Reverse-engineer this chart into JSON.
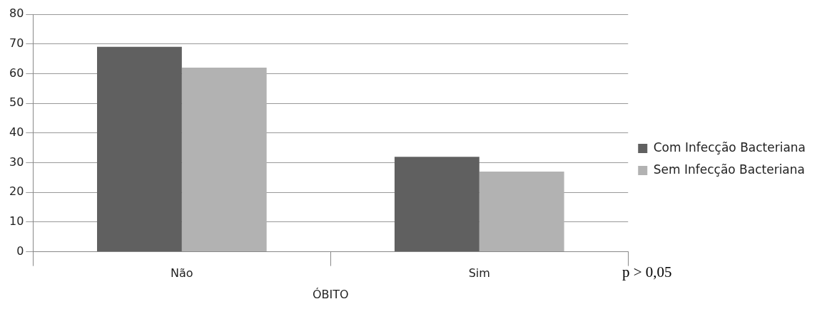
{
  "chart_data": {
    "type": "bar",
    "categories": [
      "Não",
      "Sim"
    ],
    "xlabel": "ÓBITO",
    "series": [
      {
        "name": "Com Infecção Bacteriana",
        "color": "#606060",
        "values": [
          69,
          32
        ]
      },
      {
        "name": "Sem Infecção Bacteriana",
        "color": "#b2b2b2",
        "values": [
          62,
          27
        ]
      }
    ],
    "ylim": [
      0,
      80
    ],
    "yticks": [
      0,
      10,
      20,
      30,
      40,
      50,
      60,
      70,
      80
    ],
    "grid": "y",
    "legend": "right",
    "annotations": [
      "p > 0,05"
    ]
  }
}
